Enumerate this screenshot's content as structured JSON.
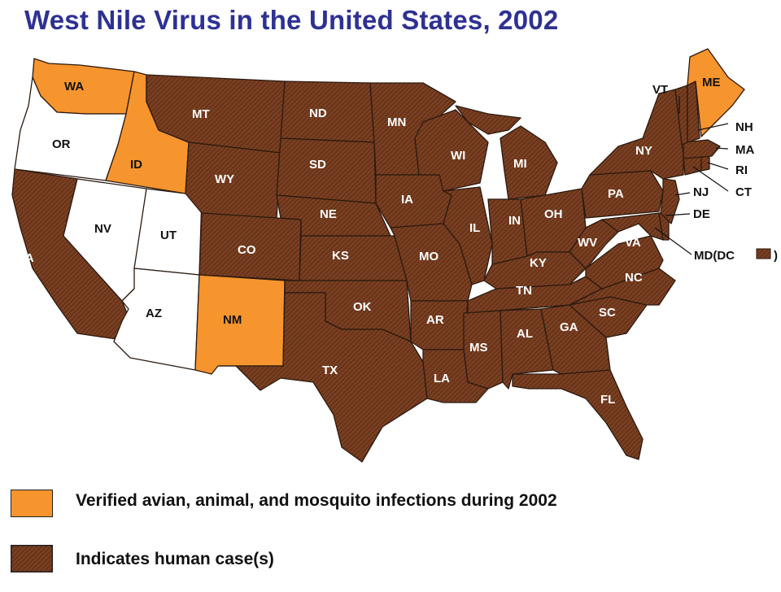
{
  "title": "West Nile Virus in the United States, 2002",
  "colors": {
    "human_case": "#7a3f21",
    "verified_animal": "#f6942e",
    "no_activity": "#ffffff",
    "border": "#2b1a10",
    "title": "#2e3192"
  },
  "states": {
    "WA": "WA",
    "OR": "OR",
    "CA": "CA",
    "ID": "ID",
    "NV": "NV",
    "UT": "UT",
    "AZ": "AZ",
    "MT": "MT",
    "WY": "WY",
    "CO": "CO",
    "NM": "NM",
    "ND": "ND",
    "SD": "SD",
    "NE": "NE",
    "KS": "KS",
    "OK": "OK",
    "TX": "TX",
    "MN": "MN",
    "IA": "IA",
    "MO": "MO",
    "AR": "AR",
    "LA": "LA",
    "WI": "WI",
    "IL": "IL",
    "MI": "MI",
    "IN": "IN",
    "OH": "OH",
    "KY": "KY",
    "TN": "TN",
    "MS": "MS",
    "AL": "AL",
    "GA": "GA",
    "FL": "FL",
    "SC": "SC",
    "NC": "NC",
    "VA": "VA",
    "WV": "WV",
    "PA": "PA",
    "NY": "NY",
    "VT": "VT",
    "ME": "ME",
    "NH": "NH",
    "MA": "MA",
    "RI": "RI",
    "CT": "CT",
    "NJ": "NJ",
    "DE": "DE",
    "MD_DC": "MD(DC",
    "paren_close": ")"
  },
  "legend": {
    "verified": "Verified avian, animal, and mosquito infections during 2002",
    "human": "Indicates human case(s)"
  }
}
